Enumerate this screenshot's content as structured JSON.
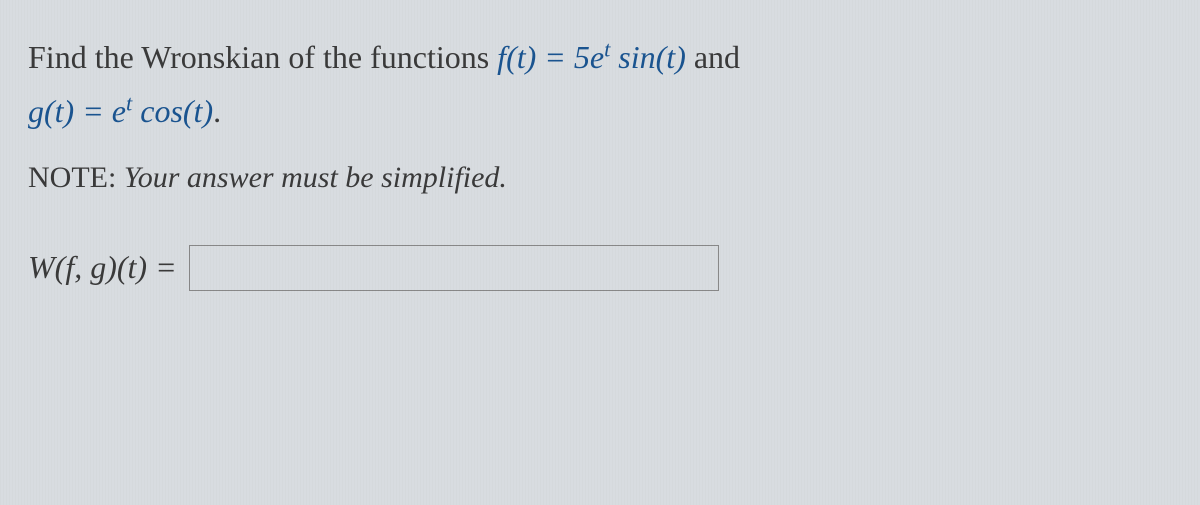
{
  "problem": {
    "prefix": "Find the Wronskian of the functions ",
    "f_label": "f",
    "f_arg_open": "(",
    "f_arg": "t",
    "f_arg_close": ") = ",
    "f_expr_coef": "5",
    "f_expr_e": "e",
    "f_expr_sup": "t",
    "f_expr_sin": " sin",
    "f_expr_paren_open": "(",
    "f_expr_t": "t",
    "f_expr_paren_close": ")",
    "connector": " and",
    "g_label": "g",
    "g_arg_open": "(",
    "g_arg": "t",
    "g_arg_close": ") = ",
    "g_expr_e": "e",
    "g_expr_sup": "t",
    "g_expr_cos": " cos",
    "g_expr_paren_open": "(",
    "g_expr_t": "t",
    "g_expr_paren_close": ")",
    "g_period": "."
  },
  "note": {
    "label": "NOTE:",
    "text": " Your answer must be simplified."
  },
  "answer": {
    "w_label": "W",
    "fg_open": "(",
    "f": "f",
    "comma": ", ",
    "g": "g",
    "fg_close": ")",
    "t_open": "(",
    "t": "t",
    "t_close": ")",
    "equals": " = ",
    "value": "",
    "placeholder": ""
  },
  "colors": {
    "background": "#d8dce0",
    "text": "#3a3a3a",
    "math_blue": "#1a5490",
    "input_border": "#888"
  }
}
